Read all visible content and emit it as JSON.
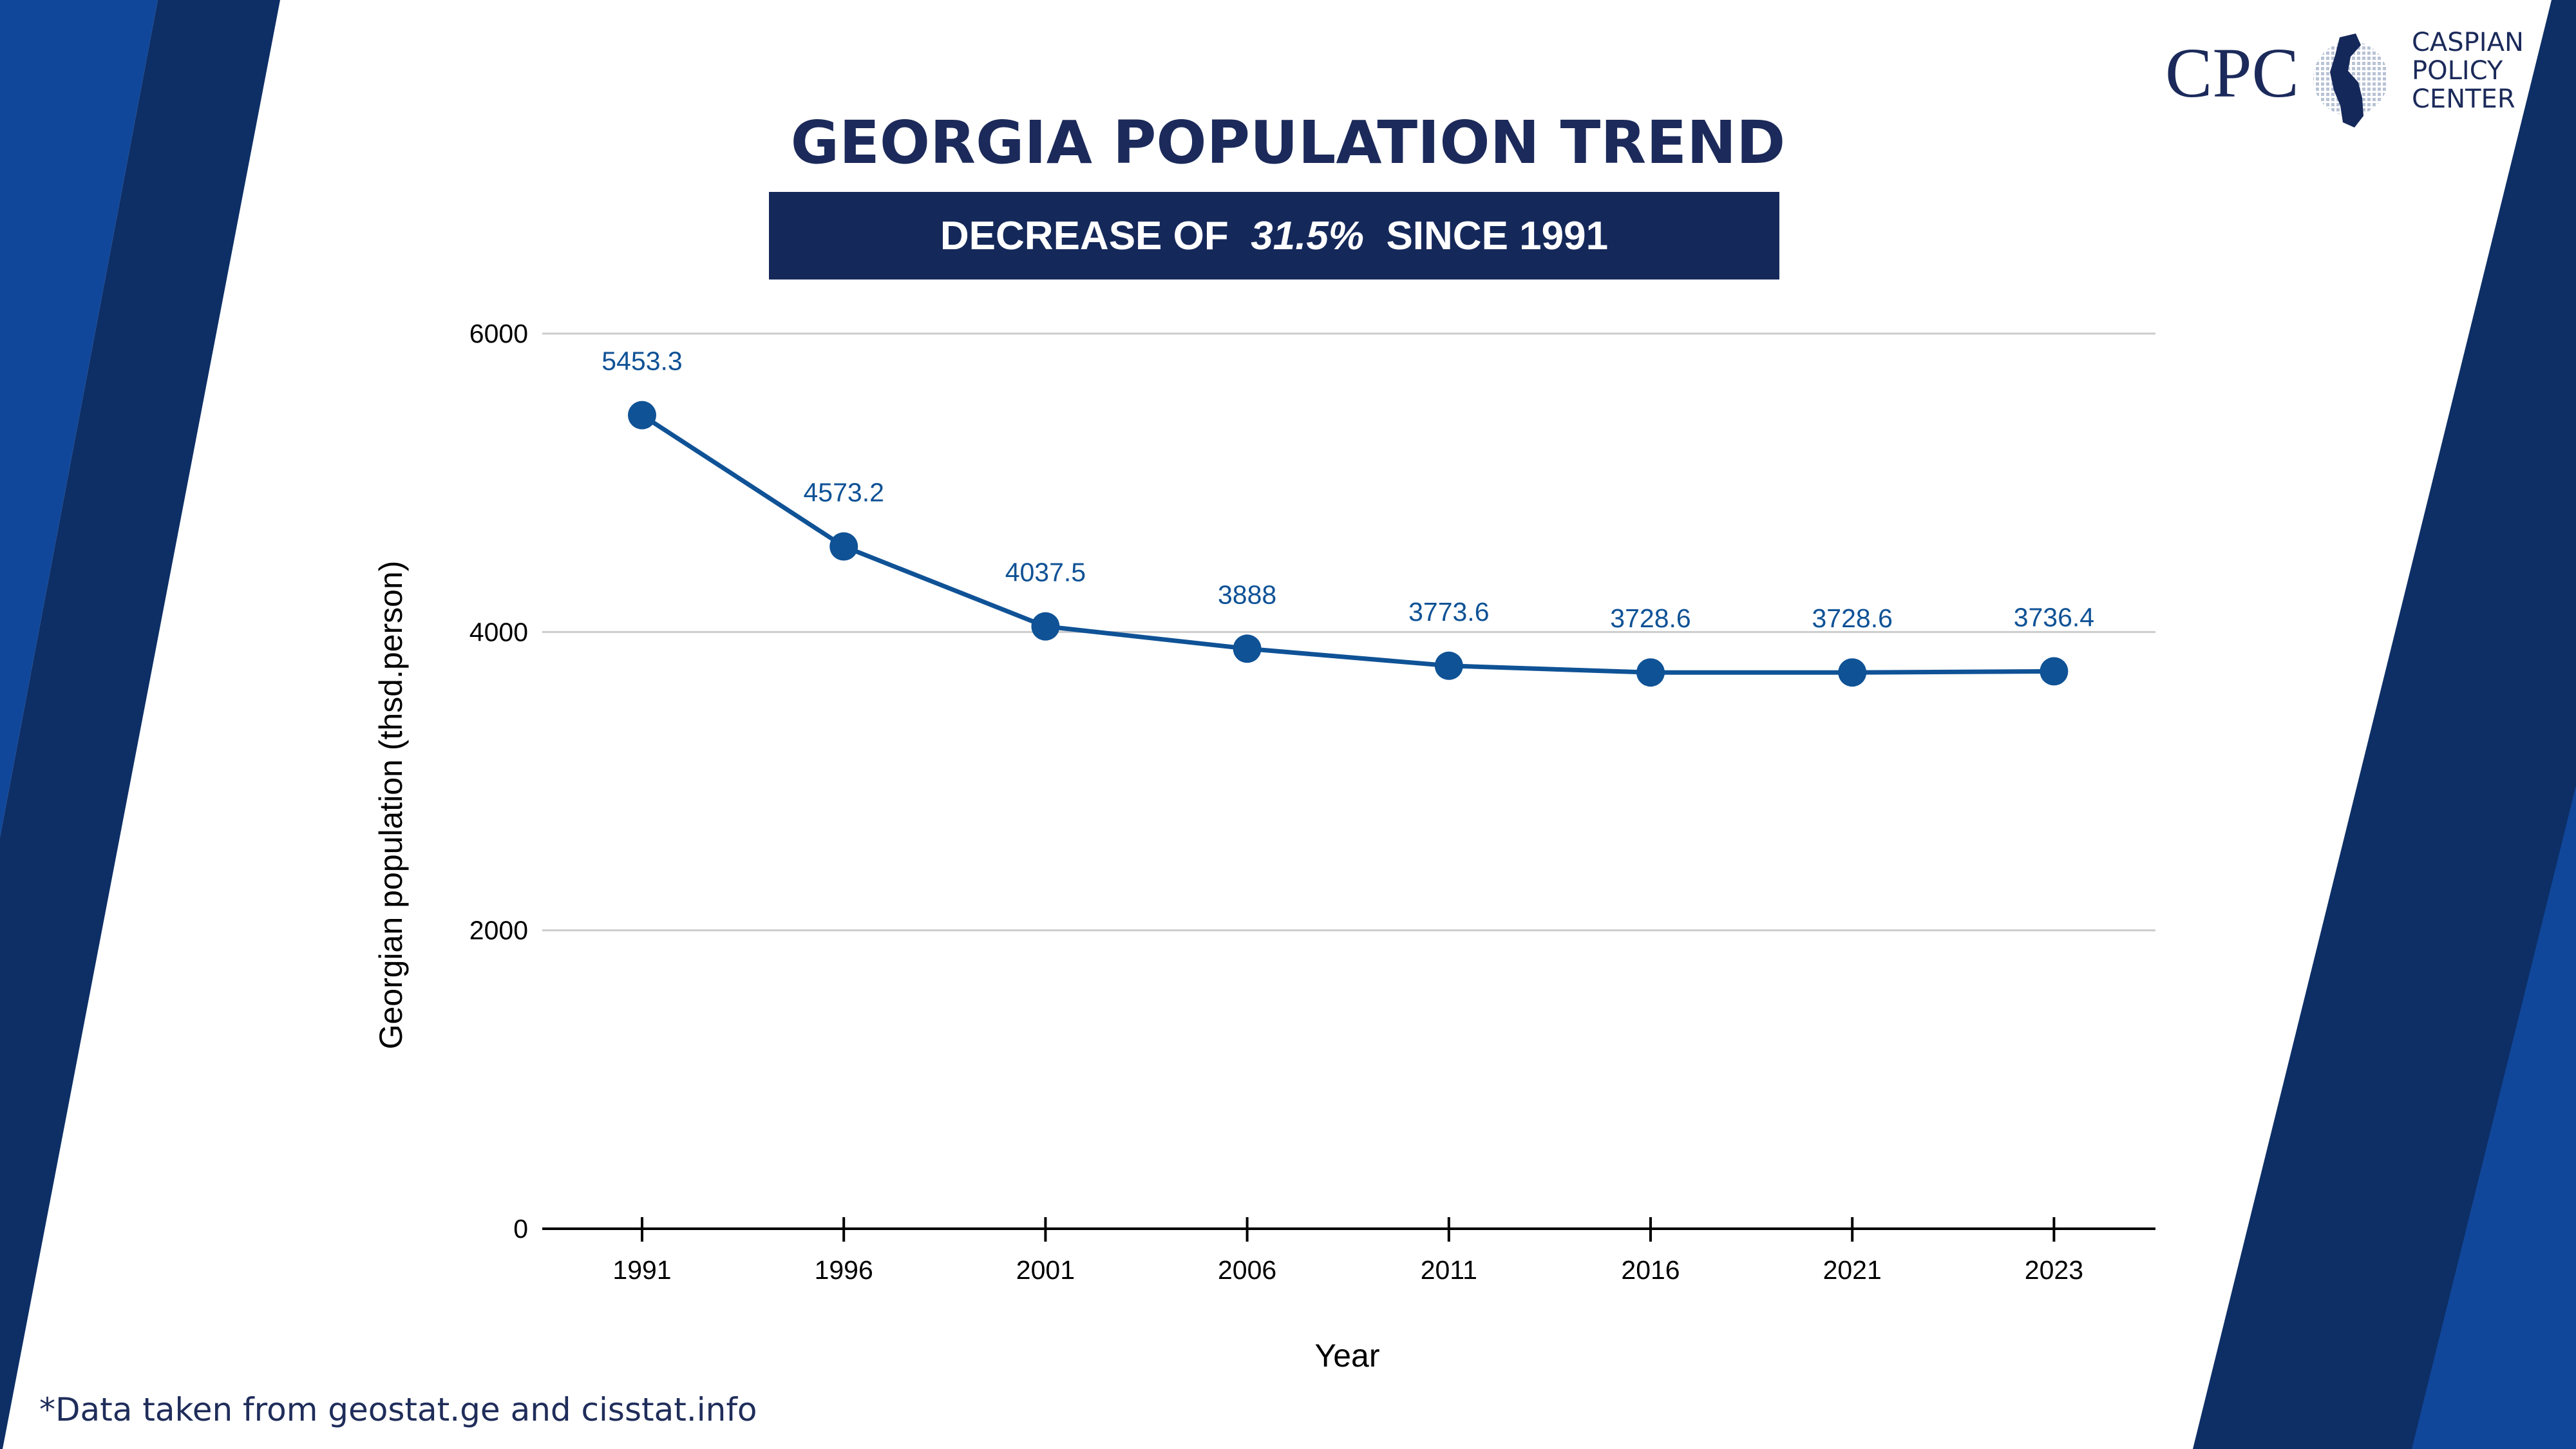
{
  "title": "GEORGIA POPULATION TREND",
  "banner": {
    "prefix": "DECREASE OF  ",
    "value": "31.5%",
    "suffix": "  SINCE 1991"
  },
  "footnote": "*Data taken from geostat.ge and cisstat.info",
  "logo": {
    "abbr": "CPC",
    "lines": [
      "CASPIAN",
      "POLICY",
      "CENTER"
    ]
  },
  "colors": {
    "accent_dark": "#0D2F66",
    "accent_light": "#11479A",
    "series": "#0F5296",
    "title": "#1B2A5A"
  },
  "chart_data": {
    "type": "line",
    "title": "",
    "xlabel": "Year",
    "ylabel": "Georgian population (thsd.person)",
    "categories": [
      "1991",
      "1996",
      "2001",
      "2006",
      "2011",
      "2016",
      "2021",
      "2023"
    ],
    "values": [
      5453.3,
      4573.2,
      4037.5,
      3888,
      3773.6,
      3728.6,
      3728.6,
      3736.4
    ],
    "data_labels": [
      "5453.3",
      "4573.2",
      "4037.5",
      "3888",
      "3773.6",
      "3728.6",
      "3728.6",
      "3736.4"
    ],
    "yticks": [
      0,
      2000,
      4000,
      6000
    ],
    "ylim": [
      0,
      6000
    ],
    "grid": true,
    "markers": true
  }
}
